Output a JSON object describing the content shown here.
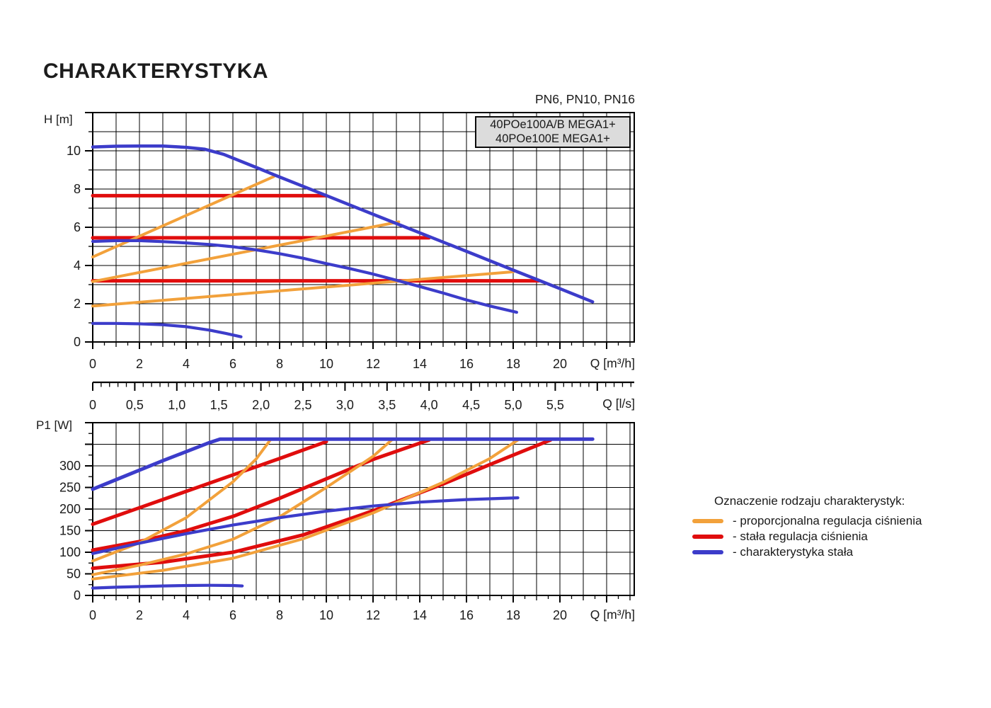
{
  "page": {
    "title": "CHARAKTERYSTYKA",
    "pressure_ratings": "PN6, PN10, PN16"
  },
  "model_box": {
    "line1": "40POe100A/B MEGA1+",
    "line2": "40POe100E MEGA1+"
  },
  "legend": {
    "title": "Oznaczenie rodzaju charakterystyk:",
    "position": "right",
    "items": [
      {
        "id": "proportional-pressure",
        "label": "- proporcjonalna regulacja ciśnienia",
        "color": "#F2A13B"
      },
      {
        "id": "constant-pressure",
        "label": "- stała regulacja ciśnienia",
        "color": "#E00D0D"
      },
      {
        "id": "constant-curve",
        "label": "- charakterystyka stała",
        "color": "#3C3CCA"
      }
    ]
  },
  "colors": {
    "orange": "#F2A13B",
    "red": "#E00D0D",
    "blue": "#3C3CCA",
    "grid": "#000000",
    "frame": "#000000",
    "text": "#1a1a1a",
    "box_fill": "#DCDCDC",
    "background": "#FFFFFF"
  },
  "flow_ruler": {
    "unit_label": "Q [l/s]",
    "labeled_ticks": [
      "0",
      "0,5",
      "1,0",
      "1,5",
      "2,0",
      "2,5",
      "3,0",
      "3,5",
      "4,0",
      "4,5",
      "5,0",
      "5,5"
    ],
    "major_step_lps": 0.5,
    "minor_step_lps": 0.1,
    "max_lps": 6.4
  },
  "chart_data": [
    {
      "type": "line",
      "id": "head-chart",
      "title": "Pump head vs flow",
      "xlabel": "Q [m³/h]",
      "ylabel": "H [m]",
      "grid": true,
      "x_axis": {
        "min": 0,
        "max": 23.18,
        "labeled_ticks": [
          0,
          2,
          4,
          6,
          8,
          10,
          12,
          14,
          16,
          18,
          20
        ],
        "minor_tick_step": 0.5,
        "grid_step": 1
      },
      "y_axis": {
        "min": 0,
        "max": 12,
        "labeled_ticks": [
          0,
          2,
          4,
          6,
          8,
          10
        ],
        "minor_tick_step": 1,
        "major_step": 2,
        "grid_step": 1
      },
      "series": [
        {
          "name": "stala-regulacja-7.65m",
          "mode": "stała regulacja ciśnienia",
          "color": "red",
          "width": 5,
          "points": [
            [
              0,
              7.65
            ],
            [
              10,
              7.65
            ]
          ]
        },
        {
          "name": "stala-regulacja-5.45m",
          "mode": "stała regulacja ciśnienia",
          "color": "red",
          "width": 5,
          "points": [
            [
              0,
              5.45
            ],
            [
              14.4,
              5.45
            ]
          ]
        },
        {
          "name": "stala-regulacja-3.2m",
          "mode": "stała regulacja ciśnienia",
          "color": "red",
          "width": 5,
          "points": [
            [
              0,
              3.2
            ],
            [
              19.1,
              3.2
            ]
          ]
        },
        {
          "name": "proporcjonalna-1",
          "mode": "proporcjonalna regulacja ciśnienia",
          "color": "orange",
          "width": 4,
          "points": [
            [
              0,
              4.45
            ],
            [
              7.75,
              8.65
            ]
          ]
        },
        {
          "name": "proporcjonalna-2",
          "mode": "proporcjonalna regulacja ciśnienia",
          "color": "orange",
          "width": 4,
          "points": [
            [
              0,
              3.16
            ],
            [
              13.1,
              6.28
            ]
          ]
        },
        {
          "name": "proporcjonalna-3",
          "mode": "proporcjonalna regulacja ciśnienia",
          "color": "orange",
          "width": 4,
          "points": [
            [
              0,
              1.88
            ],
            [
              18,
              3.67
            ]
          ]
        },
        {
          "name": "charakterystyka-stala-max",
          "mode": "charakterystyka stała",
          "color": "blue",
          "width": 4.5,
          "points": [
            [
              0,
              10.2
            ],
            [
              1,
              10.24
            ],
            [
              2,
              10.25
            ],
            [
              3,
              10.25
            ],
            [
              4,
              10.18
            ],
            [
              4.8,
              10.08
            ],
            [
              5.6,
              9.82
            ],
            [
              7,
              9.13
            ],
            [
              8,
              8.63
            ],
            [
              10,
              7.66
            ],
            [
              12,
              6.68
            ],
            [
              14,
              5.71
            ],
            [
              16,
              4.74
            ],
            [
              18,
              3.76
            ],
            [
              20,
              2.79
            ],
            [
              21.4,
              2.1
            ]
          ]
        },
        {
          "name": "charakterystyka-stala-mid",
          "mode": "charakterystyka stała",
          "color": "blue",
          "width": 4.2,
          "points": [
            [
              0,
              5.26
            ],
            [
              1,
              5.3
            ],
            [
              2,
              5.3
            ],
            [
              3,
              5.25
            ],
            [
              4,
              5.18
            ],
            [
              5,
              5.1
            ],
            [
              6,
              4.98
            ],
            [
              7,
              4.82
            ],
            [
              8,
              4.62
            ],
            [
              9,
              4.38
            ],
            [
              10,
              4.1
            ],
            [
              11,
              3.84
            ],
            [
              12,
              3.55
            ],
            [
              13,
              3.23
            ],
            [
              14,
              2.9
            ],
            [
              15,
              2.56
            ],
            [
              16,
              2.2
            ],
            [
              17,
              1.88
            ],
            [
              18.15,
              1.55
            ]
          ]
        },
        {
          "name": "charakterystyka-stala-min",
          "mode": "charakterystyka stała",
          "color": "blue",
          "width": 4.2,
          "points": [
            [
              0,
              0.97
            ],
            [
              1,
              0.97
            ],
            [
              2,
              0.95
            ],
            [
              3,
              0.9
            ],
            [
              4,
              0.8
            ],
            [
              5,
              0.62
            ],
            [
              5.7,
              0.45
            ],
            [
              6.35,
              0.27
            ]
          ]
        }
      ]
    },
    {
      "type": "line",
      "id": "power-chart",
      "title": "Power input vs flow",
      "xlabel": "Q [m³/h]",
      "ylabel": "P1 [W]",
      "grid": true,
      "x_axis": {
        "min": 0,
        "max": 23.18,
        "labeled_ticks": [
          0,
          2,
          4,
          6,
          8,
          10,
          12,
          14,
          16,
          18,
          20
        ],
        "minor_tick_step": 0.5,
        "grid_step": 1
      },
      "y_axis": {
        "min": 0,
        "max": 400,
        "labeled_ticks": [
          0,
          50,
          100,
          150,
          200,
          250,
          300
        ],
        "minor_tick_step": 25,
        "major_step": 50,
        "grid_step": 50
      },
      "series": [
        {
          "name": "stala-regulacja-p1",
          "mode": "stała regulacja ciśnienia",
          "color": "red",
          "width": 5,
          "points": [
            [
              0,
              165
            ],
            [
              2,
              203
            ],
            [
              4,
              241
            ],
            [
              6,
              279
            ],
            [
              8,
              317
            ],
            [
              10,
              356
            ]
          ]
        },
        {
          "name": "stala-regulacja-p2",
          "mode": "stała regulacja ciśnienia",
          "color": "red",
          "width": 5,
          "points": [
            [
              0,
              105
            ],
            [
              2,
              125
            ],
            [
              4,
              150
            ],
            [
              6,
              183
            ],
            [
              8,
              225
            ],
            [
              10,
              270
            ],
            [
              12,
              315
            ],
            [
              14.4,
              360
            ]
          ]
        },
        {
          "name": "stala-regulacja-p3",
          "mode": "stała regulacja ciśnienia",
          "color": "red",
          "width": 5,
          "points": [
            [
              0,
              63
            ],
            [
              3,
              77
            ],
            [
              6,
              100
            ],
            [
              9,
              140
            ],
            [
              12,
              196
            ],
            [
              15,
              258
            ],
            [
              17,
              303
            ],
            [
              19.6,
              360
            ]
          ]
        },
        {
          "name": "proporcjonalna-p1",
          "mode": "proporcjonalna regulacja ciśnienia",
          "color": "orange",
          "width": 4,
          "points": [
            [
              0,
              80
            ],
            [
              2,
              122
            ],
            [
              4,
              180
            ],
            [
              6,
              263
            ],
            [
              7,
              316
            ],
            [
              7.6,
              360
            ]
          ]
        },
        {
          "name": "proporcjonalna-p2",
          "mode": "proporcjonalna regulacja ciśnienia",
          "color": "orange",
          "width": 4,
          "points": [
            [
              0,
              48
            ],
            [
              2,
              70
            ],
            [
              4,
              96
            ],
            [
              6,
              130
            ],
            [
              8,
              182
            ],
            [
              10,
              250
            ],
            [
              12,
              322
            ],
            [
              12.8,
              360
            ]
          ]
        },
        {
          "name": "proporcjonalna-p3",
          "mode": "proporcjonalna regulacja ciśnienia",
          "color": "orange",
          "width": 4,
          "points": [
            [
              0,
              38
            ],
            [
              3,
              58
            ],
            [
              6,
              86
            ],
            [
              9,
              131
            ],
            [
              12,
              191
            ],
            [
              15,
              262
            ],
            [
              17,
              317
            ],
            [
              18.2,
              360
            ]
          ]
        },
        {
          "name": "charakterystyka-stala-max-p",
          "mode": "charakterystyka stała",
          "color": "blue",
          "width": 5,
          "points": [
            [
              0,
              246
            ],
            [
              1,
              268
            ],
            [
              2,
              290
            ],
            [
              3,
              312
            ],
            [
              4,
              333
            ],
            [
              5,
              354
            ],
            [
              5.45,
              362
            ],
            [
              21.4,
              362
            ]
          ]
        },
        {
          "name": "charakterystyka-stala-mid-p",
          "mode": "charakterystyka stała",
          "color": "blue",
          "width": 4.2,
          "points": [
            [
              0,
              97
            ],
            [
              2,
              121
            ],
            [
              4,
              143
            ],
            [
              6,
              163
            ],
            [
              8,
              180
            ],
            [
              10,
              195
            ],
            [
              12,
              207
            ],
            [
              14,
              216
            ],
            [
              16,
              222
            ],
            [
              18.2,
              226
            ]
          ]
        },
        {
          "name": "charakterystyka-stala-min-p",
          "mode": "charakterystyka stała",
          "color": "blue",
          "width": 4.2,
          "points": [
            [
              0,
              17
            ],
            [
              1,
              19
            ],
            [
              2,
              20.5
            ],
            [
              3,
              22
            ],
            [
              4,
              23
            ],
            [
              5,
              23.5
            ],
            [
              6,
              23
            ],
            [
              6.4,
              22
            ]
          ]
        }
      ]
    }
  ]
}
